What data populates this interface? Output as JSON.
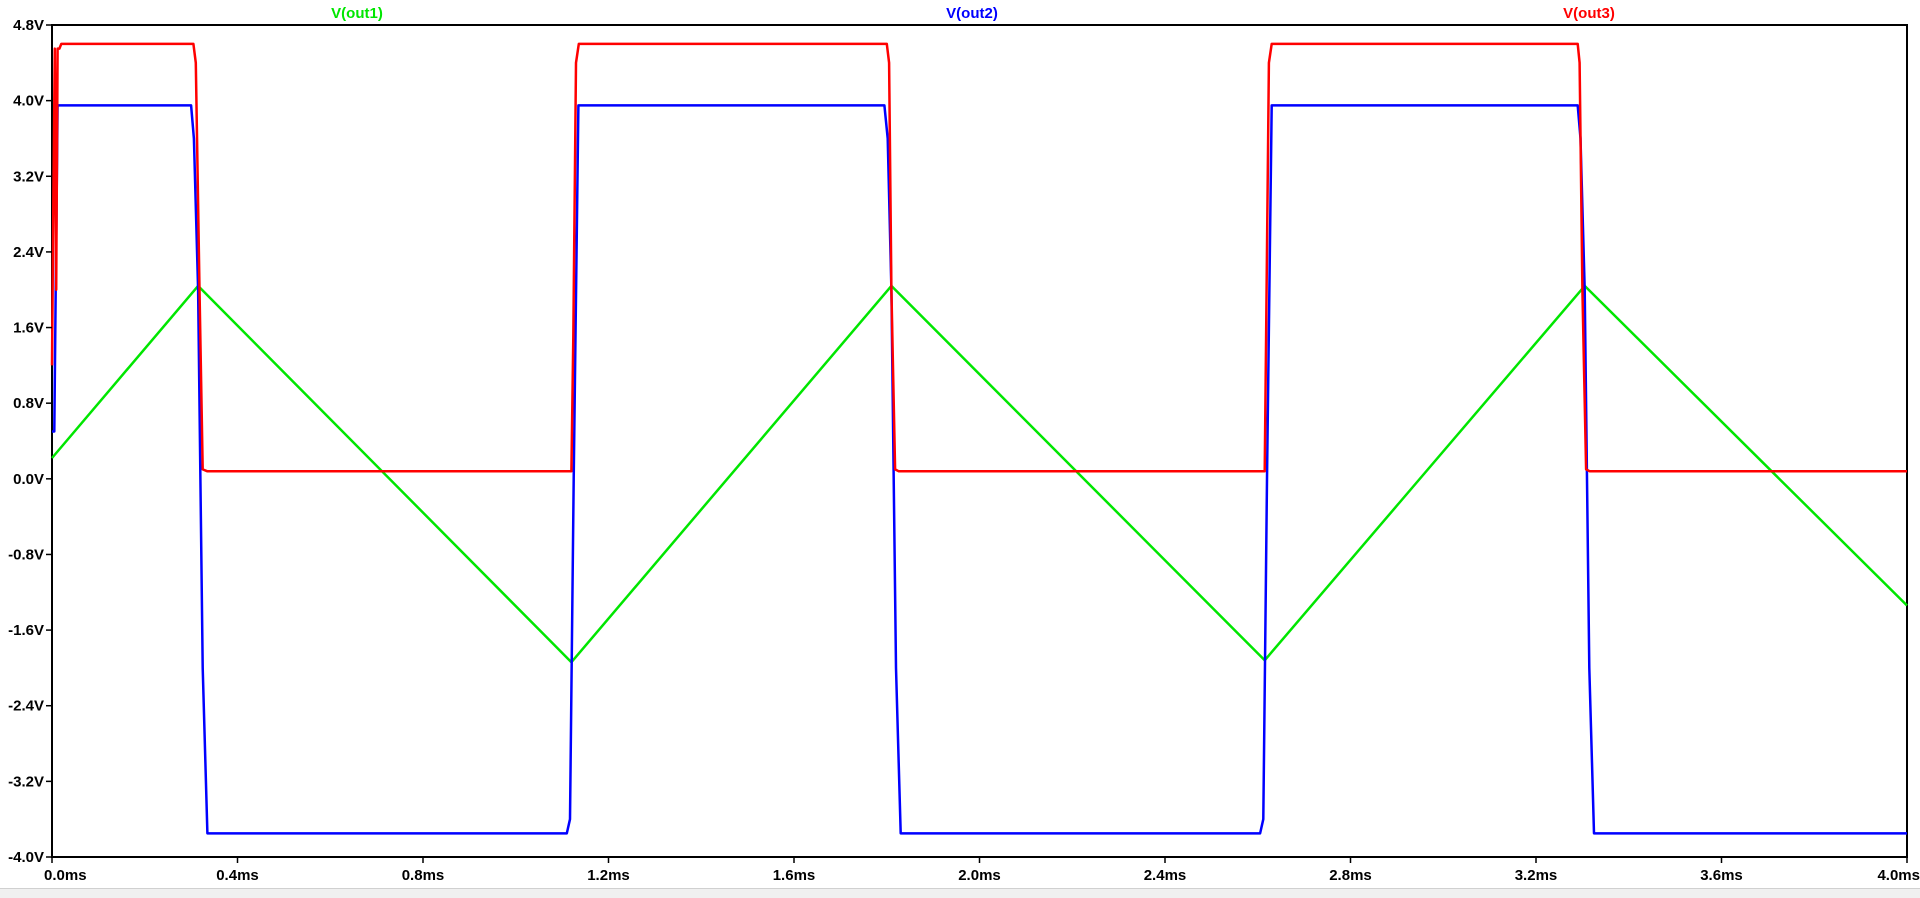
{
  "chart_data": {
    "type": "line",
    "title": "",
    "xlabel": "",
    "ylabel": "",
    "xlim": [
      0.0,
      4.0
    ],
    "ylim": [
      -4.0,
      4.8
    ],
    "x_unit": "ms",
    "y_unit": "V",
    "grid": false,
    "legend_placement": "top",
    "x_ticks": [
      0.0,
      0.4,
      0.8,
      1.2,
      1.6,
      2.0,
      2.4,
      2.8,
      3.2,
      3.6,
      4.0
    ],
    "x_tick_labels": [
      "0.0ms",
      "0.4ms",
      "0.8ms",
      "1.2ms",
      "1.6ms",
      "2.0ms",
      "2.4ms",
      "2.8ms",
      "3.2ms",
      "3.6ms",
      "4.0ms"
    ],
    "y_ticks": [
      4.8,
      4.0,
      3.2,
      2.4,
      1.6,
      0.8,
      0.0,
      -0.8,
      -1.6,
      -2.4,
      -3.2,
      -4.0
    ],
    "y_tick_labels": [
      "4.8V",
      "4.0V",
      "3.2V",
      "2.4V",
      "1.6V",
      "0.8V",
      "0.0V",
      "-0.8V",
      "-1.6V",
      "-2.4V",
      "-3.2V",
      "-4.0V"
    ],
    "series": [
      {
        "name": "V(out1)",
        "color": "#00e600",
        "x": [
          0.0,
          0.315,
          1.12,
          1.81,
          2.615,
          3.305,
          4.0
        ],
        "y": [
          0.22,
          2.04,
          -1.94,
          2.04,
          -1.92,
          2.04,
          -1.34
        ]
      },
      {
        "name": "V(out2)",
        "color": "#0000ff",
        "x": [
          0.0,
          0.005,
          0.008,
          0.012,
          0.02,
          0.3,
          0.306,
          0.315,
          0.325,
          0.335,
          1.11,
          1.117,
          1.125,
          1.135,
          1.795,
          1.802,
          1.81,
          1.82,
          1.83,
          2.605,
          2.612,
          2.62,
          2.63,
          3.29,
          3.296,
          3.305,
          3.315,
          3.325,
          4.0
        ],
        "y": [
          0.5,
          0.5,
          2.0,
          3.95,
          3.95,
          3.95,
          3.6,
          2.0,
          -2.0,
          -3.75,
          -3.75,
          -3.6,
          0.0,
          3.95,
          3.95,
          3.6,
          2.0,
          -2.0,
          -3.75,
          -3.75,
          -3.6,
          0.0,
          3.95,
          3.95,
          3.6,
          2.0,
          -2.0,
          -3.75,
          -3.75
        ]
      },
      {
        "name": "V(out3)",
        "color": "#ff0000",
        "x": [
          0.0,
          0.003,
          0.006,
          0.009,
          0.012,
          0.016,
          0.02,
          0.03,
          0.305,
          0.31,
          0.318,
          0.325,
          0.335,
          1.12,
          1.124,
          1.13,
          1.136,
          1.8,
          1.805,
          1.81,
          1.818,
          1.826,
          2.615,
          2.618,
          2.624,
          2.63,
          3.29,
          3.294,
          3.3,
          3.308,
          3.316,
          4.0
        ],
        "y": [
          1.2,
          3.0,
          4.55,
          2.0,
          4.55,
          4.55,
          4.6,
          4.6,
          4.6,
          4.4,
          2.0,
          0.1,
          0.08,
          0.08,
          1.5,
          4.4,
          4.6,
          4.6,
          4.4,
          2.0,
          0.1,
          0.08,
          0.08,
          1.5,
          4.4,
          4.6,
          4.6,
          4.4,
          2.0,
          0.1,
          0.08,
          0.08
        ]
      }
    ]
  },
  "status_bar": {
    "text": ""
  }
}
